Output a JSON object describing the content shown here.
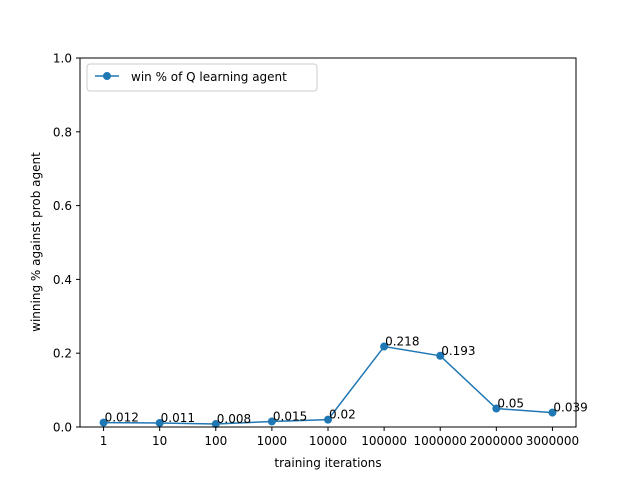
{
  "chart_data": {
    "type": "line",
    "title": "",
    "xlabel": "training iterations",
    "ylabel": "winning % against prob agent",
    "categories": [
      "1",
      "10",
      "100",
      "1000",
      "10000",
      "100000",
      "1000000",
      "2000000",
      "3000000"
    ],
    "series": [
      {
        "name": "win % of Q learning agent",
        "values": [
          0.012,
          0.011,
          0.008,
          0.015,
          0.02,
          0.218,
          0.193,
          0.05,
          0.039
        ],
        "labels": [
          "0.012",
          "0.011",
          "0.008",
          "0.015",
          "0.02",
          "0.218",
          "0.193",
          "0.05",
          "0.039"
        ],
        "color": "#1f77b4"
      }
    ],
    "ylim": [
      0,
      1.0
    ],
    "yticks": [
      "0.0",
      "0.2",
      "0.4",
      "0.6",
      "0.8",
      "1.0"
    ],
    "grid": false,
    "legend": "upper-left"
  }
}
